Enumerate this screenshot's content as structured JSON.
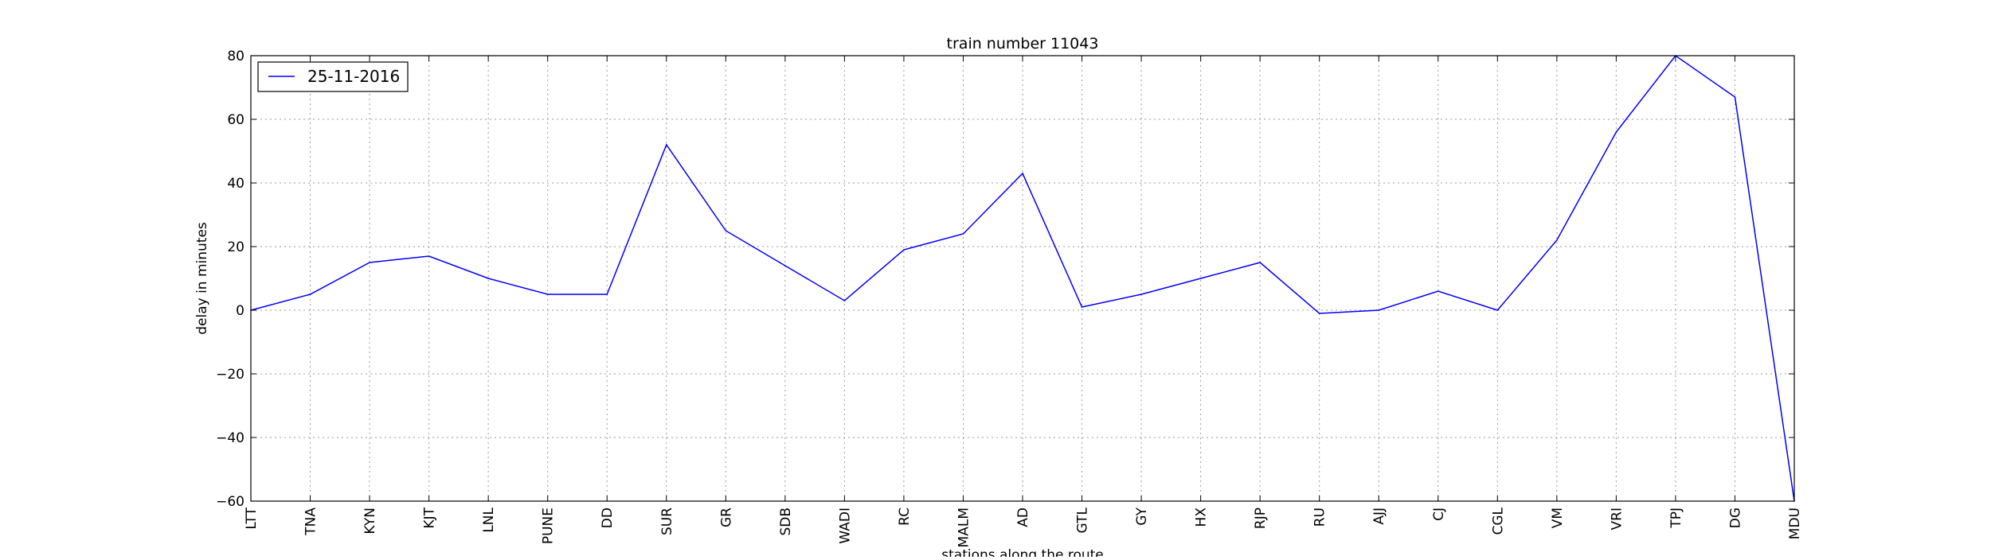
{
  "chart_data": {
    "type": "line",
    "title": "train number 11043",
    "xlabel": "stations along the route",
    "ylabel": "delay in minutes",
    "ylim": [
      -60,
      80
    ],
    "yticks": [
      -60,
      -40,
      -20,
      0,
      20,
      40,
      60,
      80
    ],
    "ytick_labels": [
      "−60",
      "−40",
      "−20",
      "0",
      "20",
      "40",
      "60",
      "80"
    ],
    "grid": true,
    "legend_position": "top-left",
    "categories": [
      "LTT",
      "TNA",
      "KYN",
      "KJT",
      "LNL",
      "PUNE",
      "DD",
      "SUR",
      "GR",
      "SDB",
      "WADI",
      "RC",
      "MALM",
      "AD",
      "GTL",
      "GY",
      "HX",
      "RJP",
      "RU",
      "AJJ",
      "CJ",
      "CGL",
      "VM",
      "VRI",
      "TPJ",
      "DG",
      "MDU"
    ],
    "series": [
      {
        "name": "25-11-2016",
        "color": "#0000ff",
        "values": [
          0,
          5,
          15,
          17,
          10,
          5,
          5,
          52,
          25,
          14,
          3,
          19,
          24,
          43,
          1,
          5,
          10,
          15,
          -1,
          0,
          6,
          0,
          22,
          56,
          80,
          67,
          -60
        ]
      }
    ]
  }
}
